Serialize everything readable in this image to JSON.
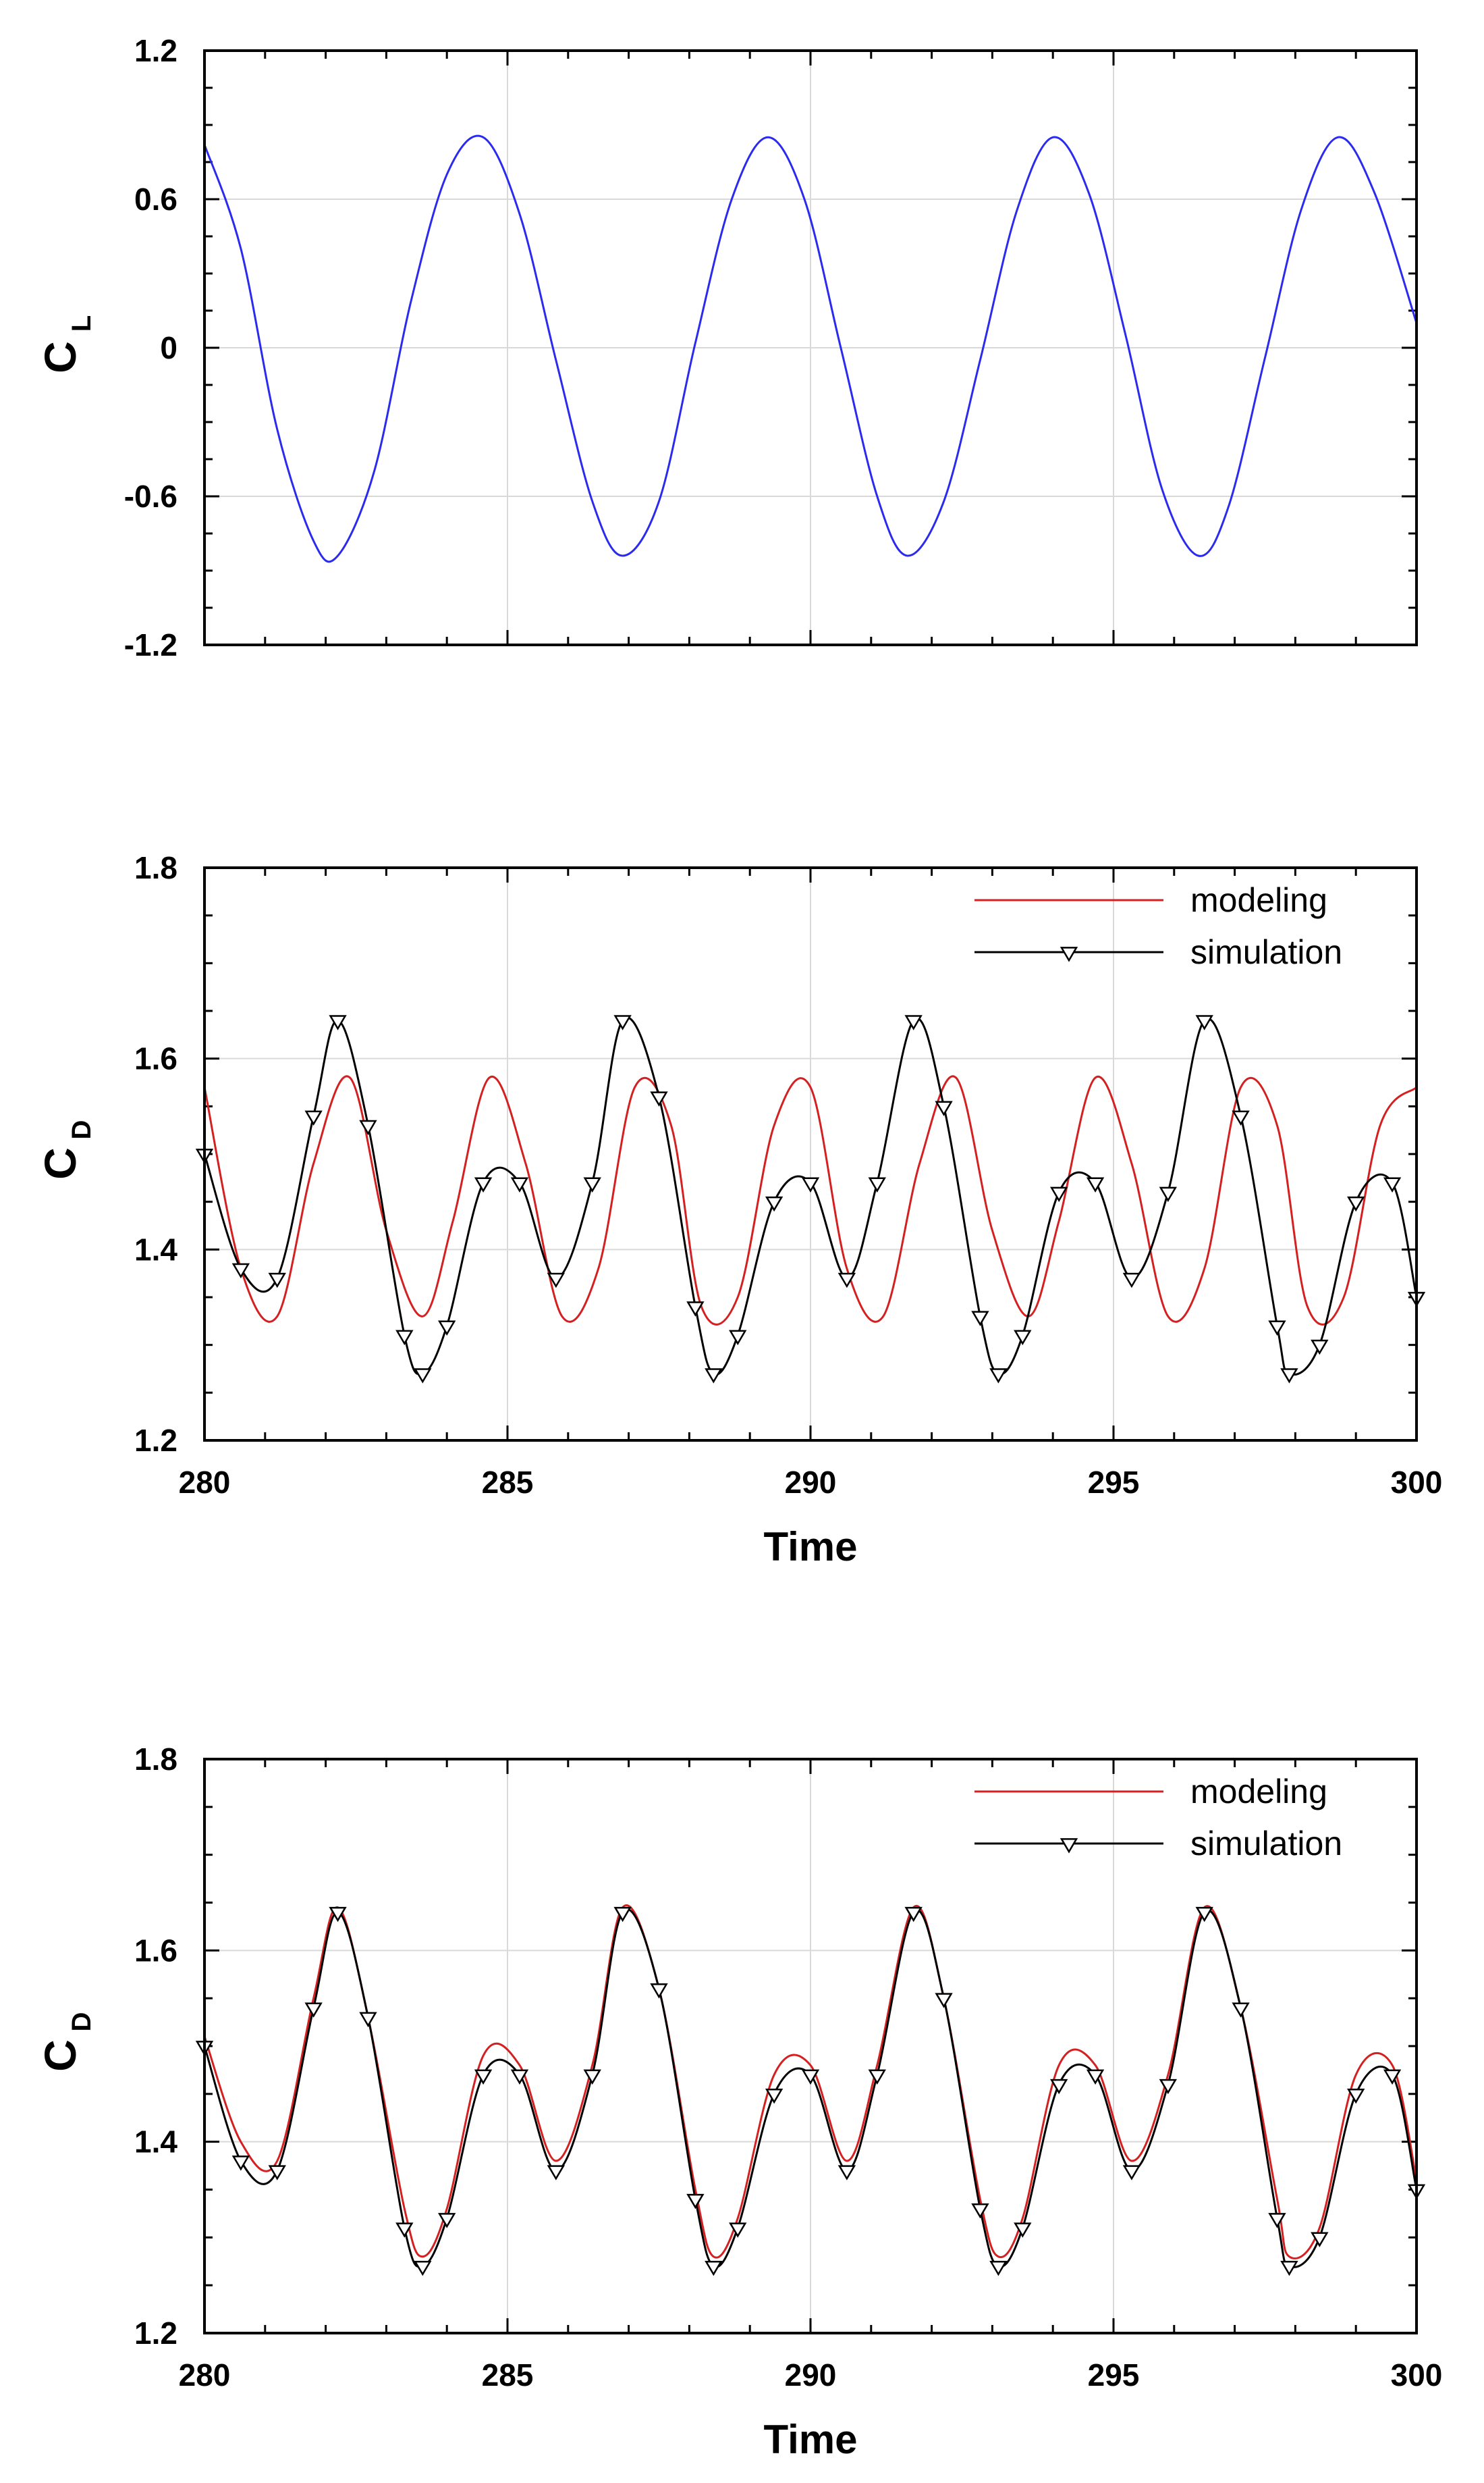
{
  "colors": {
    "lift": "#2b2bf0",
    "modeling": "#d42020",
    "simulation": "#000000",
    "grid": "#d9d9d9"
  },
  "chart_data": [
    {
      "type": "line",
      "id": "lift",
      "title": "",
      "xlabel": "",
      "ylabel_symbol": "C",
      "ylabel_subscript": "L",
      "xlim": [
        280,
        300
      ],
      "ylim": [
        -1.2,
        1.2
      ],
      "xticks": [
        285,
        290,
        295
      ],
      "yticks": [
        -1.2,
        -0.6,
        0,
        0.6,
        1.2
      ],
      "ytick_labels": [
        "-1.2",
        "-0.6",
        "0",
        "0.6",
        "1.2"
      ],
      "show_x_tick_labels": false,
      "grid": true,
      "series": [
        {
          "name": "C_L",
          "color_key": "lift",
          "x": [
            280.0,
            280.6,
            281.2,
            281.8,
            282.2,
            282.8,
            283.4,
            284.0,
            284.6,
            285.2,
            285.8,
            286.4,
            286.9,
            287.5,
            288.1,
            288.7,
            289.3,
            289.9,
            290.5,
            291.1,
            291.6,
            292.2,
            292.8,
            293.4,
            294.0,
            294.6,
            295.2,
            295.8,
            296.4,
            296.9,
            297.5,
            298.1,
            298.7,
            299.3,
            300.0
          ],
          "y": [
            0.82,
            0.4,
            -0.33,
            -0.78,
            -0.84,
            -0.5,
            0.18,
            0.7,
            0.85,
            0.54,
            -0.05,
            -0.62,
            -0.84,
            -0.62,
            0.02,
            0.6,
            0.85,
            0.6,
            0.0,
            -0.6,
            -0.84,
            -0.62,
            -0.05,
            0.55,
            0.85,
            0.62,
            0.05,
            -0.57,
            -0.84,
            -0.64,
            -0.04,
            0.56,
            0.85,
            0.63,
            0.1
          ]
        }
      ]
    },
    {
      "type": "line",
      "id": "drag-model-1",
      "title": "",
      "xlabel": "Time",
      "ylabel_symbol": "C",
      "ylabel_subscript": "D",
      "xlim": [
        280,
        300
      ],
      "ylim": [
        1.2,
        1.8
      ],
      "xticks": [
        280,
        285,
        290,
        295,
        300
      ],
      "xtick_labels": [
        "280",
        "285",
        "290",
        "295",
        "300"
      ],
      "yticks": [
        1.2,
        1.4,
        1.6,
        1.8
      ],
      "ytick_labels": [
        "1.2",
        "1.4",
        "1.6",
        "1.8"
      ],
      "show_x_tick_labels": true,
      "grid": true,
      "legend": {
        "position": "top-right",
        "entries": [
          "modeling",
          "simulation"
        ]
      },
      "series": [
        {
          "name": "modeling",
          "color_key": "modeling",
          "markers": false,
          "x": [
            280.0,
            280.6,
            281.2,
            281.8,
            282.4,
            283.0,
            283.6,
            284.1,
            284.7,
            285.3,
            285.9,
            286.5,
            287.1,
            287.7,
            288.2,
            288.8,
            289.4,
            290.0,
            290.6,
            291.2,
            291.8,
            292.4,
            293.0,
            293.6,
            294.1,
            294.7,
            295.3,
            295.9,
            296.5,
            297.1,
            297.7,
            298.2,
            298.8,
            299.4,
            300.0
          ],
          "y": [
            1.57,
            1.38,
            1.33,
            1.49,
            1.58,
            1.42,
            1.33,
            1.43,
            1.58,
            1.49,
            1.33,
            1.38,
            1.57,
            1.53,
            1.34,
            1.35,
            1.53,
            1.57,
            1.38,
            1.33,
            1.49,
            1.58,
            1.42,
            1.33,
            1.43,
            1.58,
            1.49,
            1.33,
            1.38,
            1.57,
            1.53,
            1.34,
            1.35,
            1.53,
            1.57
          ]
        },
        {
          "name": "simulation",
          "color_key": "simulation",
          "markers": true,
          "x": [
            280.0,
            280.6,
            281.2,
            281.8,
            282.2,
            282.7,
            283.3,
            283.6,
            284.0,
            284.6,
            285.2,
            285.8,
            286.4,
            286.9,
            287.5,
            288.1,
            288.4,
            288.8,
            289.4,
            290.0,
            290.6,
            291.1,
            291.7,
            292.2,
            292.8,
            293.1,
            293.5,
            294.1,
            294.7,
            295.3,
            295.9,
            296.5,
            297.1,
            297.7,
            297.9,
            298.4,
            299.0,
            299.6,
            300.0
          ],
          "y": [
            1.5,
            1.38,
            1.37,
            1.54,
            1.64,
            1.53,
            1.31,
            1.27,
            1.32,
            1.47,
            1.47,
            1.37,
            1.47,
            1.64,
            1.56,
            1.34,
            1.27,
            1.31,
            1.45,
            1.47,
            1.37,
            1.47,
            1.64,
            1.55,
            1.33,
            1.27,
            1.31,
            1.46,
            1.47,
            1.37,
            1.46,
            1.64,
            1.54,
            1.32,
            1.27,
            1.3,
            1.45,
            1.47,
            1.35
          ]
        }
      ]
    },
    {
      "type": "line",
      "id": "drag-model-2",
      "title": "",
      "xlabel": "Time",
      "ylabel_symbol": "C",
      "ylabel_subscript": "D",
      "xlim": [
        280,
        300
      ],
      "ylim": [
        1.2,
        1.8
      ],
      "xticks": [
        280,
        285,
        290,
        295,
        300
      ],
      "xtick_labels": [
        "280",
        "285",
        "290",
        "295",
        "300"
      ],
      "yticks": [
        1.2,
        1.4,
        1.6,
        1.8
      ],
      "ytick_labels": [
        "1.2",
        "1.4",
        "1.6",
        "1.8"
      ],
      "show_x_tick_labels": true,
      "grid": true,
      "legend": {
        "position": "top-right",
        "entries": [
          "modeling",
          "simulation"
        ]
      },
      "series": [
        {
          "name": "modeling",
          "color_key": "modeling",
          "markers": false,
          "x": [
            280.0,
            280.6,
            281.2,
            281.8,
            282.2,
            282.7,
            283.3,
            283.6,
            284.0,
            284.6,
            285.2,
            285.8,
            286.4,
            286.9,
            287.5,
            288.1,
            288.4,
            288.8,
            289.4,
            290.0,
            290.6,
            291.1,
            291.7,
            292.2,
            292.8,
            293.1,
            293.5,
            294.1,
            294.7,
            295.3,
            295.9,
            296.5,
            297.1,
            297.7,
            297.9,
            298.4,
            299.0,
            299.6,
            300.0
          ],
          "y": [
            1.51,
            1.4,
            1.38,
            1.55,
            1.645,
            1.53,
            1.33,
            1.28,
            1.33,
            1.49,
            1.48,
            1.38,
            1.48,
            1.645,
            1.56,
            1.35,
            1.28,
            1.32,
            1.47,
            1.48,
            1.38,
            1.48,
            1.645,
            1.55,
            1.34,
            1.28,
            1.32,
            1.48,
            1.48,
            1.38,
            1.47,
            1.645,
            1.54,
            1.34,
            1.28,
            1.31,
            1.47,
            1.48,
            1.36
          ]
        },
        {
          "name": "simulation",
          "color_key": "simulation",
          "markers": true,
          "x": [
            280.0,
            280.6,
            281.2,
            281.8,
            282.2,
            282.7,
            283.3,
            283.6,
            284.0,
            284.6,
            285.2,
            285.8,
            286.4,
            286.9,
            287.5,
            288.1,
            288.4,
            288.8,
            289.4,
            290.0,
            290.6,
            291.1,
            291.7,
            292.2,
            292.8,
            293.1,
            293.5,
            294.1,
            294.7,
            295.3,
            295.9,
            296.5,
            297.1,
            297.7,
            297.9,
            298.4,
            299.0,
            299.6,
            300.0
          ],
          "y": [
            1.5,
            1.38,
            1.37,
            1.54,
            1.64,
            1.53,
            1.31,
            1.27,
            1.32,
            1.47,
            1.47,
            1.37,
            1.47,
            1.64,
            1.56,
            1.34,
            1.27,
            1.31,
            1.45,
            1.47,
            1.37,
            1.47,
            1.64,
            1.55,
            1.33,
            1.27,
            1.31,
            1.46,
            1.47,
            1.37,
            1.46,
            1.64,
            1.54,
            1.32,
            1.27,
            1.3,
            1.45,
            1.47,
            1.35
          ]
        }
      ]
    }
  ]
}
